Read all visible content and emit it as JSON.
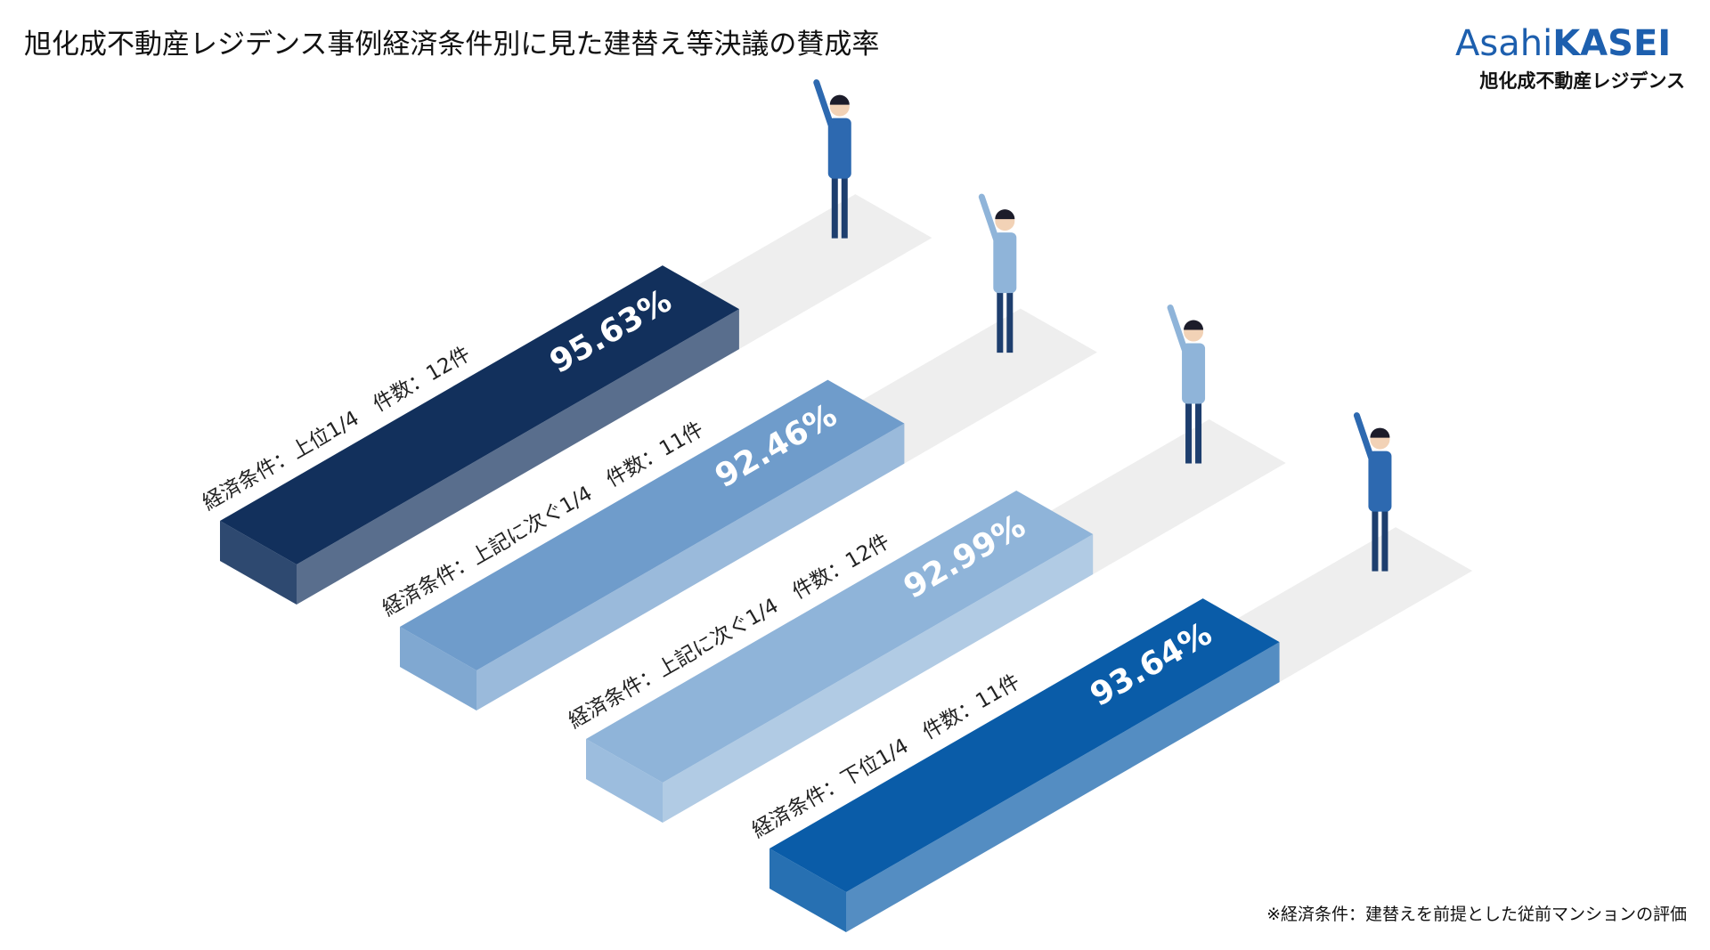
{
  "chart_data": {
    "type": "bar",
    "title": "旭化成不動産レジデンス事例経済条件別に見た建替え等決議の賛成率",
    "categories": [
      "経済条件：上位1/4　件数：12件",
      "経済条件：上記に次ぐ1/4　件数：11件",
      "経済条件：上記に次ぐ1/4　件数：12件",
      "経済条件：下位1/4　件数：11件"
    ],
    "values": [
      95.63,
      92.46,
      92.99,
      93.64
    ],
    "value_labels": [
      "95.63%",
      "92.46%",
      "92.99%",
      "93.64%"
    ],
    "colors": [
      "#12305c",
      "#6f9ccb",
      "#8fb4d9",
      "#0a5ca8"
    ],
    "note": "※経済条件：建替えを前提とした従前マンションの評価"
  },
  "logo": {
    "brand": "Asahi",
    "brand_bold": "KASEI",
    "company": "旭化成不動産レジデンス"
  }
}
